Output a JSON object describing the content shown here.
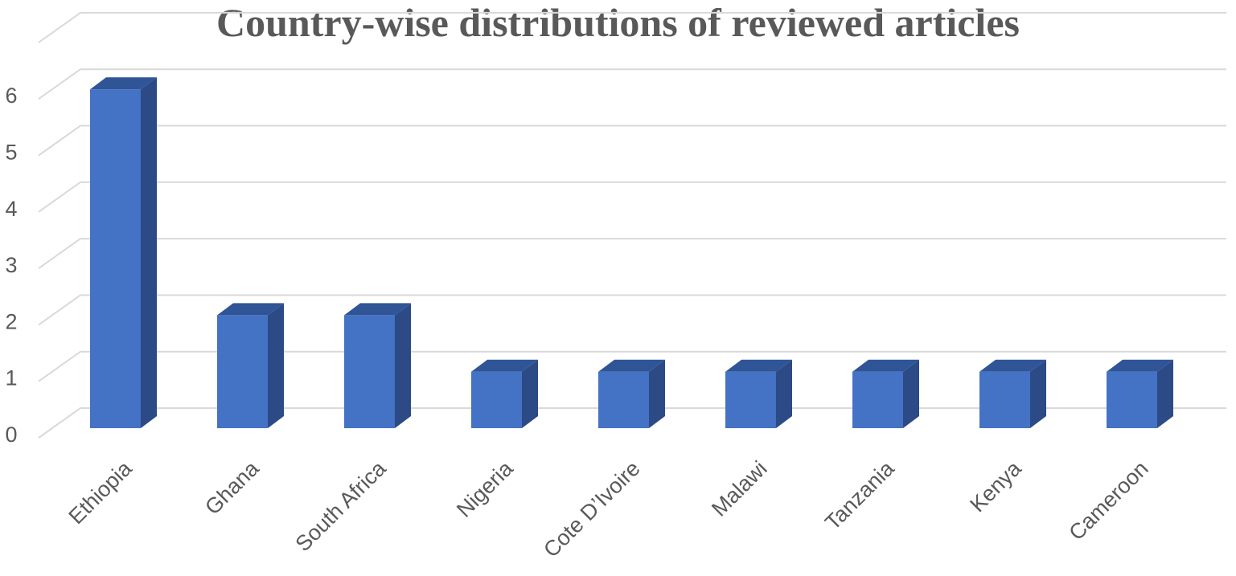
{
  "chart_data": {
    "type": "bar",
    "title": "Country-wise distributions of reviewed  articles",
    "categories": [
      "Ethiopia",
      "Ghana",
      "South Africa",
      "Nigeria",
      "Cote D’Ivoire",
      "Malawi",
      "Tanzania",
      "Kenya",
      "Cameroon"
    ],
    "values": [
      6,
      2,
      2,
      1,
      1,
      1,
      1,
      1,
      1
    ],
    "yticks": [
      "0",
      "1",
      "2",
      "3",
      "4",
      "5",
      "6"
    ],
    "ylim": [
      0,
      6
    ],
    "grid": true,
    "legend": "none",
    "colors": {
      "front": "#4472C4",
      "side": "#2C4A85",
      "top": "#2F5597",
      "grid": "#D9D9D9",
      "text": "#595959"
    }
  }
}
